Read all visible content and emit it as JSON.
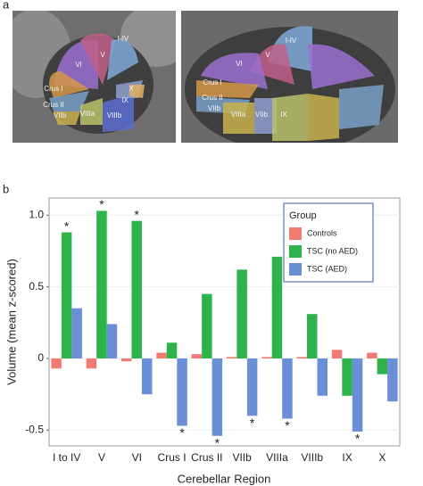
{
  "panel_labels": [
    "a",
    "b"
  ],
  "images": [
    {
      "labels": [
        "I-IV",
        "V",
        "VI",
        "Crus I",
        "X",
        "Crus II",
        "IX",
        "VIIb",
        "VIIIa",
        "VIIIb"
      ]
    },
    {
      "labels": [
        "I-IV",
        "V",
        "VI",
        "Crus I",
        "Crus II",
        "VIIb",
        "VIIIa",
        "VIIb",
        "IX"
      ]
    }
  ],
  "chart_data": {
    "type": "bar",
    "x_label": "Cerebellar Region",
    "y_label": "Volume (mean z-scored)",
    "categories": [
      "I to IV",
      "V",
      "VI",
      "Crus I",
      "Crus II",
      "VIIb",
      "VIIIa",
      "VIIIb",
      "IX",
      "X"
    ],
    "series": [
      {
        "name": "Controls",
        "color": "#f07b72",
        "values": [
          -0.07,
          -0.07,
          -0.02,
          0.04,
          0.03,
          0.01,
          0.01,
          0.01,
          0.06,
          0.04
        ],
        "markers": [
          null,
          null,
          null,
          null,
          null,
          null,
          null,
          null,
          null,
          null
        ]
      },
      {
        "name": "TSC (no AED)",
        "color": "#2db34a",
        "values": [
          0.88,
          1.03,
          0.96,
          0.11,
          0.45,
          0.62,
          0.71,
          0.31,
          -0.26,
          -0.11
        ],
        "markers": [
          "*",
          "*",
          "*",
          null,
          null,
          null,
          null,
          null,
          null,
          null
        ]
      },
      {
        "name": "TSC (AED)",
        "color": "#6a8fd6",
        "values": [
          0.35,
          0.24,
          -0.25,
          -0.47,
          -0.54,
          -0.4,
          -0.42,
          -0.26,
          -0.51,
          -0.3
        ],
        "markers": [
          null,
          null,
          null,
          "*",
          "*",
          "*",
          "*",
          null,
          "*",
          null
        ]
      }
    ],
    "legend_title": "Group",
    "legend_position": "top-right",
    "ylim": [
      -0.61,
      1.12
    ],
    "yticks": [
      {
        "value": 1,
        "label": "1.0"
      },
      0.5,
      0,
      -0.5
    ],
    "grid": true
  }
}
